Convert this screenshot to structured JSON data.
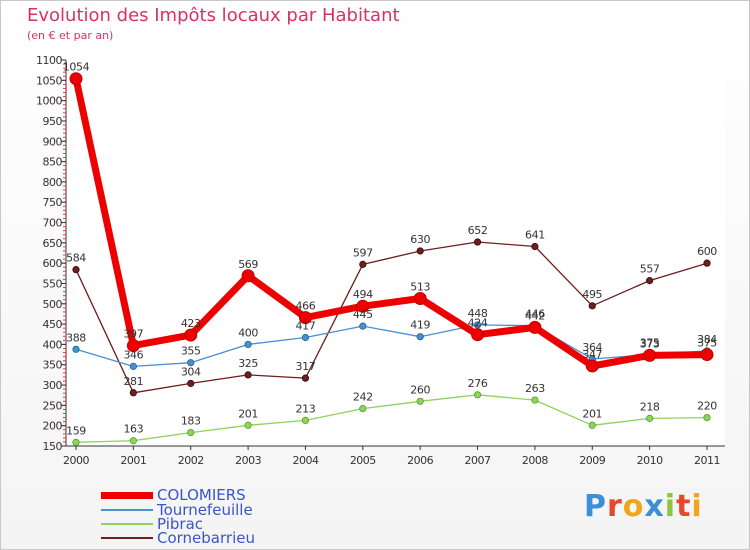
{
  "chart_data": {
    "type": "line",
    "title": "Evolution des Impôts locaux par Habitant",
    "subtitle": "(en € et par an)",
    "xlabel": "",
    "ylabel": "",
    "categories": [
      "2000",
      "2001",
      "2002",
      "2003",
      "2004",
      "2005",
      "2006",
      "2007",
      "2008",
      "2009",
      "2010",
      "2011"
    ],
    "ylim": [
      150,
      1100
    ],
    "yticks": [
      150,
      200,
      250,
      300,
      350,
      400,
      450,
      500,
      550,
      600,
      650,
      700,
      750,
      800,
      850,
      900,
      950,
      1000,
      1050,
      1100
    ],
    "grid": false,
    "legend_position": "bottom-left",
    "series": [
      {
        "name": "COLOMIERS",
        "color": "#ee0000",
        "values": [
          1054,
          397,
          423,
          569,
          466,
          494,
          513,
          424,
          442,
          347,
          373,
          375
        ]
      },
      {
        "name": "Tournefeuille",
        "color": "#4a8fd0",
        "values": [
          388,
          346,
          355,
          400,
          417,
          445,
          419,
          448,
          446,
          364,
          375,
          384
        ]
      },
      {
        "name": "Pibrac",
        "color": "#8ed35a",
        "values": [
          159,
          163,
          183,
          201,
          213,
          242,
          260,
          276,
          263,
          201,
          218,
          220
        ]
      },
      {
        "name": "Cornebarrieu",
        "color": "#6b1f1f",
        "values": [
          584,
          281,
          304,
          325,
          317,
          597,
          630,
          652,
          641,
          495,
          557,
          600
        ]
      }
    ]
  },
  "logo": {
    "text": "Proxiti",
    "letters": [
      {
        "ch": "P",
        "color": "#3a8fd6"
      },
      {
        "ch": "r",
        "color": "#e8472a"
      },
      {
        "ch": "o",
        "color": "#f2a51a"
      },
      {
        "ch": "x",
        "color": "#3a8fd6"
      },
      {
        "ch": "i",
        "color": "#8cc63f"
      },
      {
        "ch": "t",
        "color": "#e8472a"
      },
      {
        "ch": "i",
        "color": "#f2a51a"
      }
    ]
  }
}
